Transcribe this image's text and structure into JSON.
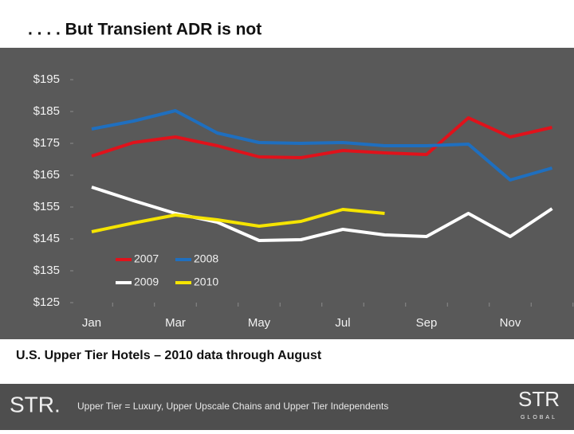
{
  "chart_data": {
    "type": "line",
    "title": ". . . . But Transient ADR is not",
    "categories": [
      "Jan",
      null,
      "Mar",
      null,
      "May",
      null,
      "Jul",
      null,
      "Sep",
      null,
      "Nov",
      null
    ],
    "series": [
      {
        "name": "2007",
        "color": "#e0121b",
        "values": [
          171,
          175.25,
          177,
          174.25,
          170.75,
          170.5,
          172.75,
          172,
          171.5,
          183,
          177,
          180
        ]
      },
      {
        "name": "2008",
        "color": "#1f6fbf",
        "values": [
          179.5,
          182,
          185.25,
          178.25,
          175.25,
          175,
          175.25,
          174.25,
          174.25,
          174.75,
          163.5,
          167.25
        ]
      },
      {
        "name": "2009",
        "color": "#ffffff",
        "values": [
          161.25,
          157,
          153,
          150.25,
          144.5,
          144.75,
          148,
          146.25,
          145.75,
          153,
          145.75,
          154.5
        ]
      },
      {
        "name": "2010",
        "color": "#f5e400",
        "values": [
          147.25,
          150,
          152.5,
          151,
          149,
          150.5,
          154.25,
          153,
          null,
          null,
          null,
          null
        ]
      }
    ],
    "ylim": [
      125,
      195
    ],
    "yticks": [
      {
        "value": 125,
        "label": "$125"
      },
      {
        "value": 135,
        "label": "$135"
      },
      {
        "value": 145,
        "label": "$145"
      },
      {
        "value": 155,
        "label": "$155"
      },
      {
        "value": 165,
        "label": "$165"
      },
      {
        "value": 175,
        "label": "$175"
      },
      {
        "value": 185,
        "label": "$185"
      },
      {
        "value": 195,
        "label": "$195"
      }
    ],
    "grid": false,
    "legend": "lower left"
  },
  "slide": {
    "caption": "U.S. Upper Tier Hotels – 2010 data through August",
    "footnote": "Upper Tier = Luxury, Upper Upscale Chains and Upper Tier Independents",
    "logo_left": "STR.",
    "logo_right": "STR",
    "logo_right_sub": "GLOBAL"
  }
}
